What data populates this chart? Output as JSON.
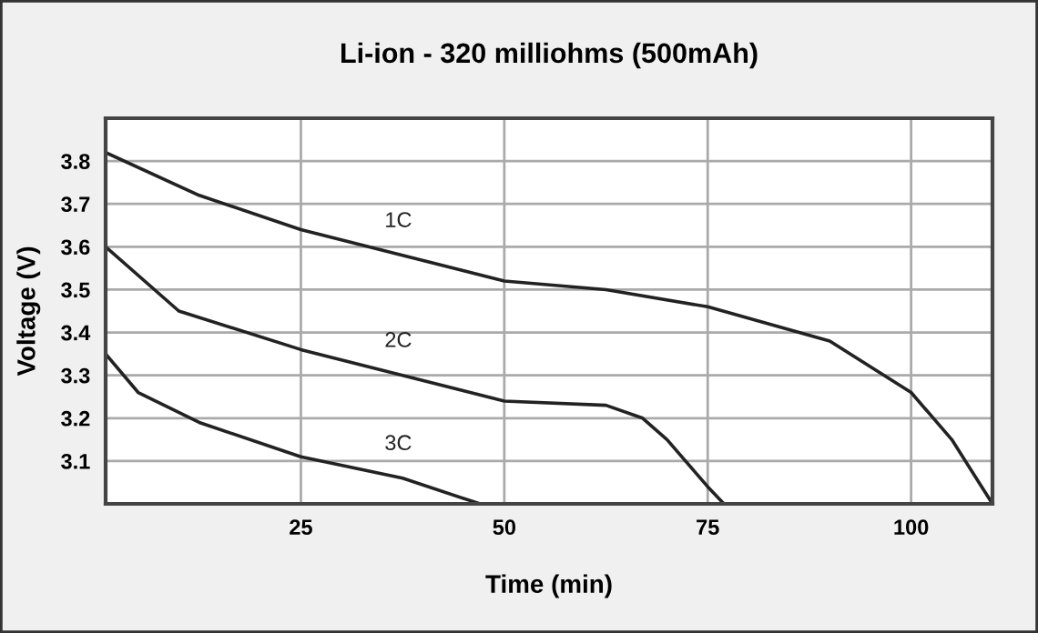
{
  "chart_data": {
    "type": "line",
    "title": "Li-ion - 320 milliohms (500mAh)",
    "xlabel": "Time (min)",
    "ylabel": "Voltage (V)",
    "xlim": [
      1,
      110
    ],
    "ylim": [
      3.0,
      3.9
    ],
    "xticks": [
      25,
      50,
      75,
      100
    ],
    "yticks": [
      3.1,
      3.2,
      3.3,
      3.4,
      3.5,
      3.6,
      3.7,
      3.8
    ],
    "grid": true,
    "marker": "none",
    "line_style": "solid",
    "series": [
      {
        "name": "1C",
        "color": "#222222",
        "x": [
          1,
          12.5,
          25,
          37.5,
          50,
          62.5,
          75,
          90,
          100,
          105,
          110
        ],
        "values": [
          3.82,
          3.72,
          3.64,
          3.58,
          3.52,
          3.5,
          3.46,
          3.38,
          3.26,
          3.15,
          3.0
        ]
      },
      {
        "name": "2C",
        "color": "#222222",
        "x": [
          1,
          10,
          25,
          37.5,
          50,
          62.5,
          67,
          70,
          75,
          77
        ],
        "values": [
          3.6,
          3.45,
          3.36,
          3.3,
          3.24,
          3.23,
          3.2,
          3.15,
          3.04,
          3.0
        ]
      },
      {
        "name": "3C",
        "color": "#222222",
        "x": [
          1,
          5,
          12.5,
          25,
          37.5,
          47
        ],
        "values": [
          3.35,
          3.26,
          3.19,
          3.11,
          3.06,
          3.0
        ]
      }
    ]
  }
}
